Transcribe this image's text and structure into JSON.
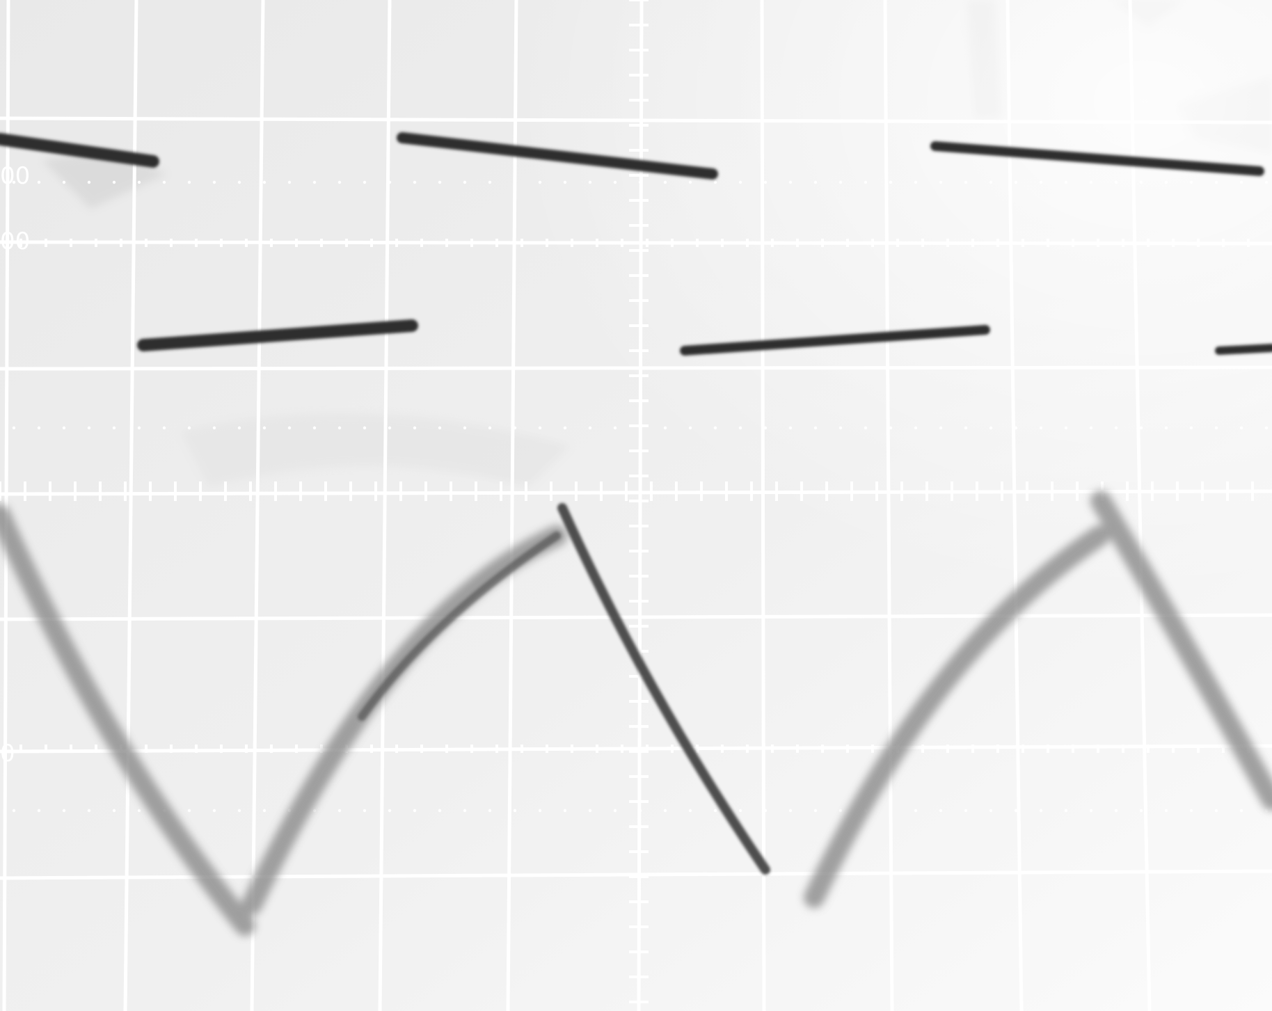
{
  "scope": {
    "graticule": {
      "major_divisions_x": 10,
      "major_divisions_y": 8,
      "minor_ticks_per_division": 5
    },
    "edge_labels": [
      "00",
      "00",
      "0"
    ],
    "colors": {
      "screen_background": "#ededed",
      "grid_lines": "#ffffff",
      "trace_top": "#2f2f2f",
      "trace_bottom_dark": "#3a3a3a",
      "trace_bottom_faint": "#8a8a8a"
    },
    "traces": [
      {
        "name": "square-wave",
        "shape": "square",
        "periods_visible": 2.2
      },
      {
        "name": "triangle-wave",
        "shape": "triangle",
        "periods_visible": 2.2
      }
    ]
  }
}
